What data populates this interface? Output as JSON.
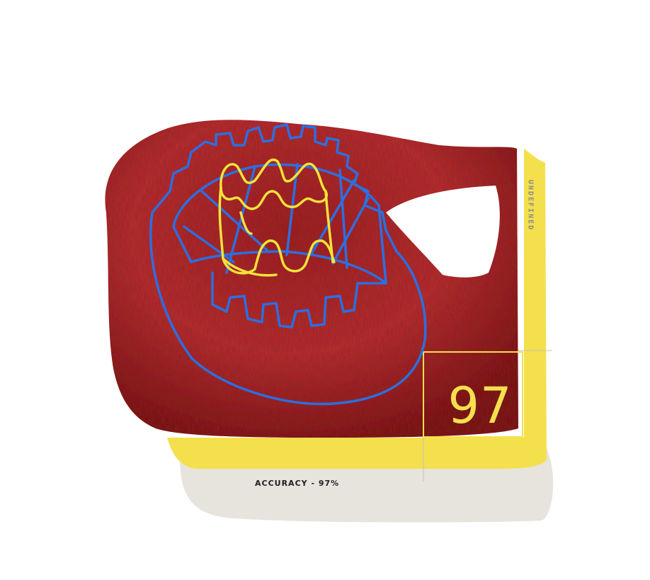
{
  "card": {
    "side_label": "UNDEFINED",
    "score": "97",
    "caption": "ACCURACY  -  97%"
  },
  "colors": {
    "fabric_red": "#b42a2c",
    "fabric_dark": "#5a1010",
    "thread_blue": "#2c6fe0",
    "thread_yellow": "#f3e23a",
    "accent_yellow": "#f4e04d",
    "shadow_beige": "#e7e3dd",
    "label_gray": "#8a8a8a"
  },
  "artwork": {
    "subject": "embroidered-castle-on-red-fabric"
  }
}
